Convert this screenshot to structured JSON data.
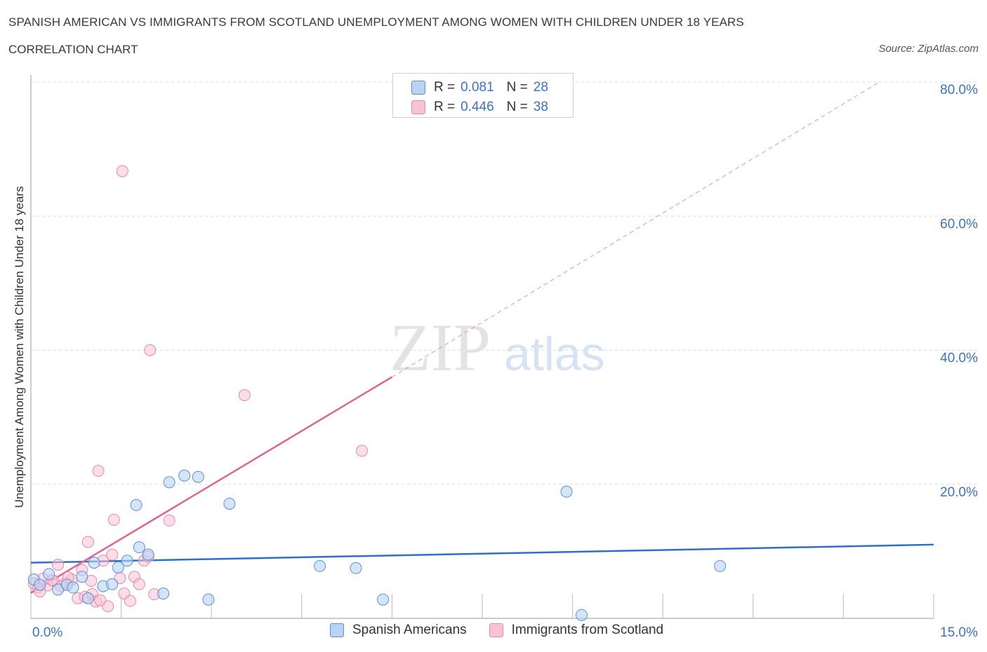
{
  "header": {
    "title": "SPANISH AMERICAN VS IMMIGRANTS FROM SCOTLAND UNEMPLOYMENT AMONG WOMEN WITH CHILDREN UNDER 18 YEARS",
    "subtitle": "CORRELATION CHART",
    "source": "Source: ZipAtlas.com"
  },
  "watermark": {
    "zip": "ZIP",
    "atlas": "atlas"
  },
  "legend": {
    "rows": [
      {
        "r_label": "R =",
        "r_value": "0.081",
        "n_label": "N =",
        "n_value": "28"
      },
      {
        "r_label": "R =",
        "r_value": "0.446",
        "n_label": "N =",
        "n_value": "38"
      }
    ]
  },
  "colors": {
    "blue_fill": "#b9d3f3",
    "blue_stroke": "#5b8fd6",
    "blue_line": "#2e6fcc",
    "pink_fill": "#f8c3d3",
    "pink_stroke": "#e68aa8",
    "pink_line": "#e0648f",
    "axis_text": "#3b73c4",
    "grid": "#dddddd"
  },
  "chart_data": {
    "type": "scatter",
    "title": "SPANISH AMERICAN VS IMMIGRANTS FROM SCOTLAND UNEMPLOYMENT AMONG WOMEN WITH CHILDREN UNDER 18 YEARS",
    "ylabel": "Unemployment Among Women with Children Under 18 years",
    "xlabel": "",
    "xlim": [
      0,
      15
    ],
    "ylim": [
      0,
      80
    ],
    "x_tick_labels": [
      "0.0%",
      "15.0%"
    ],
    "y_tick_labels": [
      "20.0%",
      "40.0%",
      "60.0%",
      "80.0%"
    ],
    "y_ticks": [
      20,
      40,
      60,
      80
    ],
    "grid": "horizontal dashed",
    "legend_position": "top-center",
    "series": [
      {
        "name": "Spanish Americans",
        "color": "blue",
        "points": [
          [
            0.05,
            5.8
          ],
          [
            0.3,
            6.6
          ],
          [
            0.45,
            4.3
          ],
          [
            0.6,
            5.0
          ],
          [
            0.7,
            4.6
          ],
          [
            0.85,
            6.2
          ],
          [
            1.05,
            8.3
          ],
          [
            1.2,
            4.8
          ],
          [
            1.35,
            5.1
          ],
          [
            1.45,
            7.6
          ],
          [
            1.6,
            8.6
          ],
          [
            1.75,
            16.9
          ],
          [
            1.8,
            10.6
          ],
          [
            1.95,
            9.5
          ],
          [
            2.2,
            3.7
          ],
          [
            2.3,
            20.3
          ],
          [
            2.55,
            21.3
          ],
          [
            2.78,
            21.1
          ],
          [
            2.95,
            2.8
          ],
          [
            3.3,
            17.1
          ],
          [
            4.8,
            7.8
          ],
          [
            5.4,
            7.5
          ],
          [
            5.85,
            2.8
          ],
          [
            8.9,
            18.9
          ],
          [
            9.15,
            0.5
          ],
          [
            11.45,
            7.8
          ],
          [
            0.15,
            5.0
          ],
          [
            0.95,
            3.0
          ]
        ],
        "trend": {
          "x": [
            0,
            15
          ],
          "y": [
            8.3,
            11.0
          ]
        }
      },
      {
        "name": "Immigrants from Scotland",
        "color": "pink",
        "points": [
          [
            0.05,
            5.2
          ],
          [
            0.12,
            4.6
          ],
          [
            0.2,
            5.9
          ],
          [
            0.28,
            4.9
          ],
          [
            0.38,
            5.6
          ],
          [
            0.45,
            8.0
          ],
          [
            0.5,
            4.8
          ],
          [
            0.58,
            5.3
          ],
          [
            0.68,
            5.8
          ],
          [
            0.78,
            3.0
          ],
          [
            0.85,
            7.2
          ],
          [
            0.9,
            3.2
          ],
          [
            0.95,
            11.4
          ],
          [
            1.02,
            3.6
          ],
          [
            1.08,
            2.5
          ],
          [
            1.12,
            22.0
          ],
          [
            1.2,
            8.6
          ],
          [
            1.28,
            1.8
          ],
          [
            1.35,
            9.5
          ],
          [
            1.38,
            14.7
          ],
          [
            1.48,
            6.0
          ],
          [
            1.55,
            3.7
          ],
          [
            1.52,
            66.7
          ],
          [
            1.65,
            2.6
          ],
          [
            1.72,
            6.2
          ],
          [
            1.8,
            5.1
          ],
          [
            1.88,
            8.6
          ],
          [
            1.95,
            9.2
          ],
          [
            1.98,
            40.0
          ],
          [
            2.05,
            3.6
          ],
          [
            2.3,
            14.6
          ],
          [
            3.55,
            33.3
          ],
          [
            5.5,
            25.0
          ],
          [
            0.15,
            4.0
          ],
          [
            0.62,
            6.1
          ],
          [
            1.0,
            5.6
          ],
          [
            0.35,
            5.7
          ],
          [
            1.15,
            2.7
          ]
        ],
        "trend": {
          "x": [
            0,
            6.0
          ],
          "y": [
            3.8,
            36.0
          ]
        },
        "trend_extension": {
          "x": [
            6.0,
            14.1
          ],
          "y": [
            36.0,
            80.0
          ]
        }
      }
    ]
  },
  "bottom_legend": {
    "items": [
      "Spanish Americans",
      "Immigrants from Scotland"
    ]
  }
}
